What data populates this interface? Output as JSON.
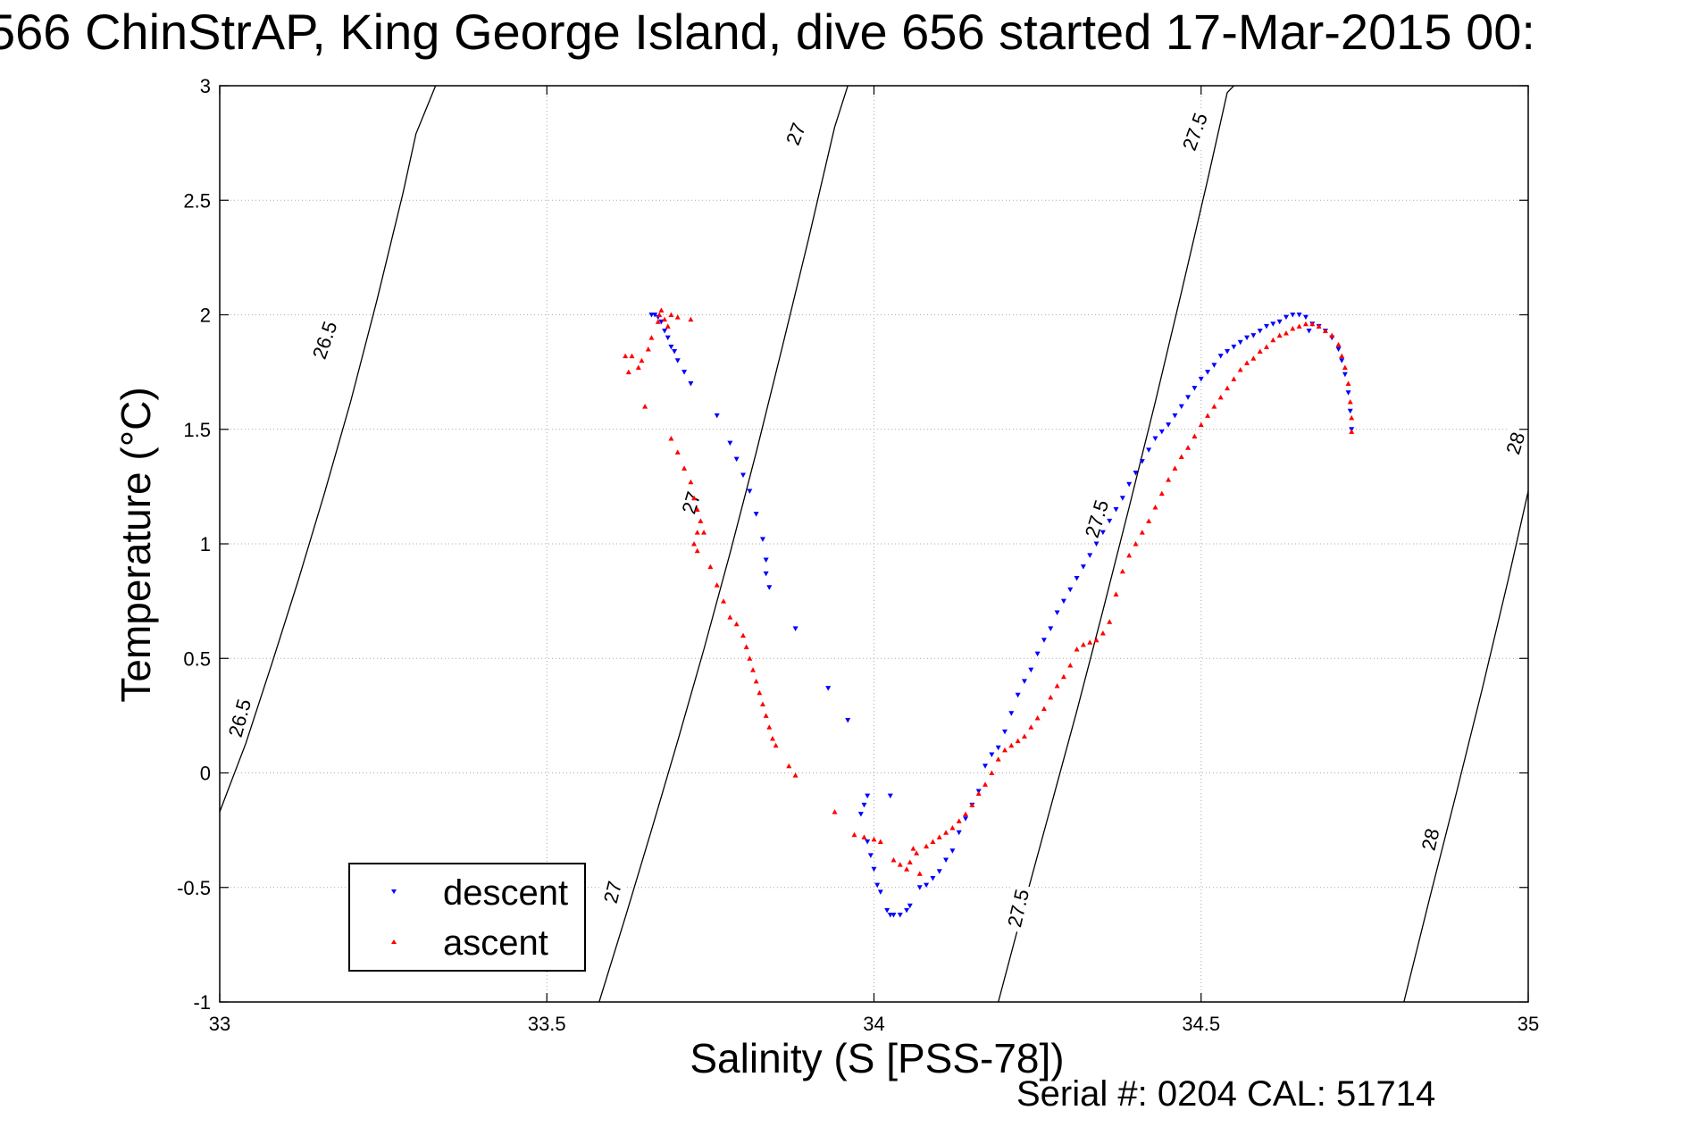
{
  "figure": {
    "title": "566 ChinStrAP, King George Island, dive 656 started 17-Mar-2015 00:",
    "footer": "Serial #: 0204  CAL: 51714"
  },
  "chart_data": {
    "type": "scatter",
    "xlabel": "Salinity (S [PSS-78])",
    "ylabel": "Temperature (°C)",
    "xlim": [
      33,
      35
    ],
    "ylim": [
      -1,
      3
    ],
    "xticks": [
      33,
      33.5,
      34,
      34.5,
      35
    ],
    "xtick_labels": [
      "33",
      "33.5",
      "34",
      "34.5",
      "35"
    ],
    "yticks": [
      -1,
      -0.5,
      0,
      0.5,
      1,
      1.5,
      2,
      2.5,
      3
    ],
    "ytick_labels": [
      "-1",
      "-0.5",
      "0",
      "0.5",
      "1",
      "1.5",
      "2",
      "2.5",
      "3"
    ],
    "grid": true,
    "grid_style": "dotted",
    "legend_position": "bottom-left",
    "colors": {
      "descent": "#0000ff",
      "ascent": "#ff0000",
      "contour": "#000000",
      "grid": "#aaaaaa"
    },
    "density_contours": [
      {
        "level": "26.5",
        "points": [
          [
            33.0,
            -0.17
          ],
          [
            33.04,
            0.13
          ],
          [
            33.08,
            0.48
          ],
          [
            33.12,
            0.84
          ],
          [
            33.16,
            1.22
          ],
          [
            33.2,
            1.62
          ],
          [
            33.24,
            2.06
          ],
          [
            33.28,
            2.53
          ],
          [
            33.3,
            2.79
          ],
          [
            33.33,
            3.0
          ]
        ],
        "labels": [
          {
            "x": 33.03,
            "y": 0.24,
            "angle": 75
          },
          {
            "x": 33.16,
            "y": 1.89,
            "angle": 71
          }
        ]
      },
      {
        "level": "27",
        "points": [
          [
            33.58,
            -1.0
          ],
          [
            33.62,
            -0.63
          ],
          [
            33.66,
            -0.25
          ],
          [
            33.7,
            0.14
          ],
          [
            33.74,
            0.54
          ],
          [
            33.78,
            0.96
          ],
          [
            33.82,
            1.4
          ],
          [
            33.86,
            1.86
          ],
          [
            33.9,
            2.33
          ],
          [
            33.94,
            2.82
          ],
          [
            33.96,
            3.0
          ]
        ],
        "labels": [
          {
            "x": 33.6,
            "y": -0.52,
            "angle": 76
          },
          {
            "x": 33.72,
            "y": 1.18,
            "angle": 73
          },
          {
            "x": 33.88,
            "y": 2.79,
            "angle": 69
          }
        ]
      },
      {
        "level": "27.5",
        "points": [
          [
            34.19,
            -1.0
          ],
          [
            34.23,
            -0.57
          ],
          [
            34.27,
            -0.15
          ],
          [
            34.31,
            0.27
          ],
          [
            34.35,
            0.71
          ],
          [
            34.39,
            1.16
          ],
          [
            34.43,
            1.62
          ],
          [
            34.47,
            2.1
          ],
          [
            34.51,
            2.59
          ],
          [
            34.54,
            2.97
          ],
          [
            34.55,
            3.0
          ]
        ],
        "labels": [
          {
            "x": 34.22,
            "y": -0.59,
            "angle": 77
          },
          {
            "x": 34.34,
            "y": 1.11,
            "angle": 73
          },
          {
            "x": 34.49,
            "y": 2.8,
            "angle": 70
          }
        ]
      },
      {
        "level": "28",
        "points": [
          [
            34.81,
            -1.0
          ],
          [
            34.85,
            -0.54
          ],
          [
            34.89,
            -0.09
          ],
          [
            34.93,
            0.37
          ],
          [
            34.97,
            0.85
          ],
          [
            35.0,
            1.23
          ]
        ],
        "labels": [
          {
            "x": 34.85,
            "y": -0.29,
            "angle": 77
          },
          {
            "x": 34.98,
            "y": 1.44,
            "angle": 73
          }
        ]
      }
    ],
    "series": [
      {
        "name": "descent",
        "marker": "down-triangle",
        "color": "#0000ff",
        "points": [
          [
            33.66,
            2.0
          ],
          [
            33.665,
            2.0
          ],
          [
            33.67,
            1.99
          ],
          [
            33.675,
            1.97
          ],
          [
            33.68,
            1.93
          ],
          [
            33.685,
            1.9
          ],
          [
            33.69,
            1.86
          ],
          [
            33.695,
            1.84
          ],
          [
            33.7,
            1.8
          ],
          [
            33.71,
            1.75
          ],
          [
            33.72,
            1.7
          ],
          [
            33.76,
            1.56
          ],
          [
            33.78,
            1.44
          ],
          [
            33.79,
            1.37
          ],
          [
            33.8,
            1.3
          ],
          [
            33.81,
            1.23
          ],
          [
            33.82,
            1.13
          ],
          [
            33.83,
            1.02
          ],
          [
            33.835,
            0.93
          ],
          [
            33.835,
            0.87
          ],
          [
            33.84,
            0.81
          ],
          [
            33.88,
            0.63
          ],
          [
            33.93,
            0.37
          ],
          [
            33.96,
            0.23
          ],
          [
            33.98,
            -0.18
          ],
          [
            33.985,
            -0.14
          ],
          [
            33.99,
            -0.1
          ],
          [
            33.99,
            -0.3
          ],
          [
            33.995,
            -0.36
          ],
          [
            34.0,
            -0.42
          ],
          [
            34.005,
            -0.49
          ],
          [
            34.01,
            -0.52
          ],
          [
            34.02,
            -0.6
          ],
          [
            34.025,
            -0.62
          ],
          [
            34.03,
            -0.62
          ],
          [
            34.04,
            -0.62
          ],
          [
            34.05,
            -0.6
          ],
          [
            34.055,
            -0.58
          ],
          [
            34.025,
            -0.1
          ],
          [
            34.07,
            -0.5
          ],
          [
            34.08,
            -0.49
          ],
          [
            34.09,
            -0.46
          ],
          [
            34.1,
            -0.43
          ],
          [
            34.11,
            -0.38
          ],
          [
            34.12,
            -0.34
          ],
          [
            34.13,
            -0.26
          ],
          [
            34.14,
            -0.2
          ],
          [
            34.15,
            -0.14
          ],
          [
            34.16,
            -0.08
          ],
          [
            34.17,
            0.03
          ],
          [
            34.18,
            0.08
          ],
          [
            34.19,
            0.11
          ],
          [
            34.2,
            0.18
          ],
          [
            34.21,
            0.26
          ],
          [
            34.22,
            0.34
          ],
          [
            34.23,
            0.4
          ],
          [
            34.24,
            0.45
          ],
          [
            34.25,
            0.52
          ],
          [
            34.26,
            0.58
          ],
          [
            34.27,
            0.63
          ],
          [
            34.28,
            0.7
          ],
          [
            34.29,
            0.75
          ],
          [
            34.3,
            0.8
          ],
          [
            34.31,
            0.85
          ],
          [
            34.32,
            0.9
          ],
          [
            34.33,
            0.95
          ],
          [
            34.34,
            1.0
          ],
          [
            34.35,
            1.05
          ],
          [
            34.36,
            1.1
          ],
          [
            34.37,
            1.15
          ],
          [
            34.38,
            1.2
          ],
          [
            34.39,
            1.26
          ],
          [
            34.4,
            1.31
          ],
          [
            34.41,
            1.36
          ],
          [
            34.42,
            1.41
          ],
          [
            34.43,
            1.46
          ],
          [
            34.44,
            1.49
          ],
          [
            34.45,
            1.52
          ],
          [
            34.46,
            1.56
          ],
          [
            34.47,
            1.6
          ],
          [
            34.48,
            1.64
          ],
          [
            34.49,
            1.68
          ],
          [
            34.5,
            1.72
          ],
          [
            34.51,
            1.75
          ],
          [
            34.52,
            1.78
          ],
          [
            34.53,
            1.82
          ],
          [
            34.54,
            1.84
          ],
          [
            34.55,
            1.86
          ],
          [
            34.56,
            1.88
          ],
          [
            34.57,
            1.9
          ],
          [
            34.58,
            1.91
          ],
          [
            34.59,
            1.93
          ],
          [
            34.6,
            1.95
          ],
          [
            34.61,
            1.96
          ],
          [
            34.62,
            1.97
          ],
          [
            34.63,
            1.99
          ],
          [
            34.64,
            2.0
          ],
          [
            34.65,
            2.0
          ],
          [
            34.66,
            1.99
          ],
          [
            34.665,
            1.93
          ],
          [
            34.67,
            1.96
          ],
          [
            34.68,
            1.95
          ],
          [
            34.69,
            1.93
          ],
          [
            34.7,
            1.9
          ],
          [
            34.71,
            1.85
          ],
          [
            34.715,
            1.8
          ],
          [
            34.72,
            1.74
          ],
          [
            34.725,
            1.66
          ],
          [
            34.728,
            1.58
          ],
          [
            34.73,
            1.5
          ]
        ]
      },
      {
        "name": "ascent",
        "marker": "up-triangle",
        "color": "#ff0000",
        "points": [
          [
            33.67,
            1.97
          ],
          [
            33.672,
            2.0
          ],
          [
            33.675,
            2.02
          ],
          [
            33.68,
            1.98
          ],
          [
            33.685,
            1.95
          ],
          [
            33.69,
            2.0
          ],
          [
            33.7,
            1.99
          ],
          [
            33.72,
            1.98
          ],
          [
            33.66,
            1.9
          ],
          [
            33.655,
            1.85
          ],
          [
            33.645,
            1.8
          ],
          [
            33.64,
            1.77
          ],
          [
            33.63,
            1.82
          ],
          [
            33.62,
            1.82
          ],
          [
            33.625,
            1.75
          ],
          [
            33.65,
            1.6
          ],
          [
            33.69,
            1.46
          ],
          [
            33.7,
            1.4
          ],
          [
            33.71,
            1.33
          ],
          [
            33.72,
            1.27
          ],
          [
            33.725,
            1.2
          ],
          [
            33.73,
            1.15
          ],
          [
            33.735,
            1.1
          ],
          [
            33.73,
            1.05
          ],
          [
            33.725,
            1.0
          ],
          [
            33.73,
            0.97
          ],
          [
            33.74,
            1.05
          ],
          [
            33.75,
            0.9
          ],
          [
            33.76,
            0.82
          ],
          [
            33.77,
            0.75
          ],
          [
            33.78,
            0.68
          ],
          [
            33.79,
            0.65
          ],
          [
            33.8,
            0.6
          ],
          [
            33.805,
            0.55
          ],
          [
            33.81,
            0.5
          ],
          [
            33.815,
            0.45
          ],
          [
            33.82,
            0.4
          ],
          [
            33.825,
            0.35
          ],
          [
            33.83,
            0.3
          ],
          [
            33.835,
            0.25
          ],
          [
            33.84,
            0.2
          ],
          [
            33.845,
            0.15
          ],
          [
            33.85,
            0.12
          ],
          [
            33.87,
            0.03
          ],
          [
            33.88,
            -0.01
          ],
          [
            33.94,
            -0.17
          ],
          [
            33.97,
            -0.27
          ],
          [
            33.985,
            -0.28
          ],
          [
            34.0,
            -0.29
          ],
          [
            34.01,
            -0.3
          ],
          [
            34.03,
            -0.38
          ],
          [
            34.04,
            -0.4
          ],
          [
            34.05,
            -0.42
          ],
          [
            34.055,
            -0.39
          ],
          [
            34.06,
            -0.33
          ],
          [
            34.065,
            -0.35
          ],
          [
            34.07,
            -0.44
          ],
          [
            34.08,
            -0.32
          ],
          [
            34.09,
            -0.3
          ],
          [
            34.1,
            -0.28
          ],
          [
            34.11,
            -0.26
          ],
          [
            34.12,
            -0.24
          ],
          [
            34.13,
            -0.21
          ],
          [
            34.14,
            -0.18
          ],
          [
            34.15,
            -0.14
          ],
          [
            34.16,
            -0.09
          ],
          [
            34.17,
            -0.05
          ],
          [
            34.18,
            0.0
          ],
          [
            34.19,
            0.06
          ],
          [
            34.2,
            0.1
          ],
          [
            34.21,
            0.12
          ],
          [
            34.22,
            0.14
          ],
          [
            34.23,
            0.16
          ],
          [
            34.24,
            0.2
          ],
          [
            34.25,
            0.24
          ],
          [
            34.26,
            0.28
          ],
          [
            34.27,
            0.33
          ],
          [
            34.28,
            0.38
          ],
          [
            34.29,
            0.42
          ],
          [
            34.3,
            0.47
          ],
          [
            34.31,
            0.54
          ],
          [
            34.32,
            0.56
          ],
          [
            34.33,
            0.57
          ],
          [
            34.34,
            0.58
          ],
          [
            34.35,
            0.61
          ],
          [
            34.36,
            0.66
          ],
          [
            34.37,
            0.78
          ],
          [
            34.38,
            0.88
          ],
          [
            34.39,
            0.95
          ],
          [
            34.4,
            1.0
          ],
          [
            34.41,
            1.05
          ],
          [
            34.42,
            1.1
          ],
          [
            34.43,
            1.16
          ],
          [
            34.44,
            1.22
          ],
          [
            34.45,
            1.28
          ],
          [
            34.46,
            1.33
          ],
          [
            34.47,
            1.38
          ],
          [
            34.48,
            1.42
          ],
          [
            34.49,
            1.47
          ],
          [
            34.5,
            1.52
          ],
          [
            34.51,
            1.56
          ],
          [
            34.52,
            1.6
          ],
          [
            34.53,
            1.64
          ],
          [
            34.54,
            1.68
          ],
          [
            34.55,
            1.72
          ],
          [
            34.56,
            1.76
          ],
          [
            34.57,
            1.79
          ],
          [
            34.58,
            1.81
          ],
          [
            34.59,
            1.84
          ],
          [
            34.6,
            1.86
          ],
          [
            34.61,
            1.89
          ],
          [
            34.62,
            1.91
          ],
          [
            34.63,
            1.92
          ],
          [
            34.64,
            1.94
          ],
          [
            34.65,
            1.95
          ],
          [
            34.66,
            1.96
          ],
          [
            34.67,
            1.96
          ],
          [
            34.68,
            1.95
          ],
          [
            34.69,
            1.93
          ],
          [
            34.7,
            1.91
          ],
          [
            34.71,
            1.87
          ],
          [
            34.715,
            1.82
          ],
          [
            34.72,
            1.77
          ],
          [
            34.725,
            1.7
          ],
          [
            34.728,
            1.62
          ],
          [
            34.73,
            1.55
          ],
          [
            34.73,
            1.49
          ]
        ]
      }
    ]
  }
}
